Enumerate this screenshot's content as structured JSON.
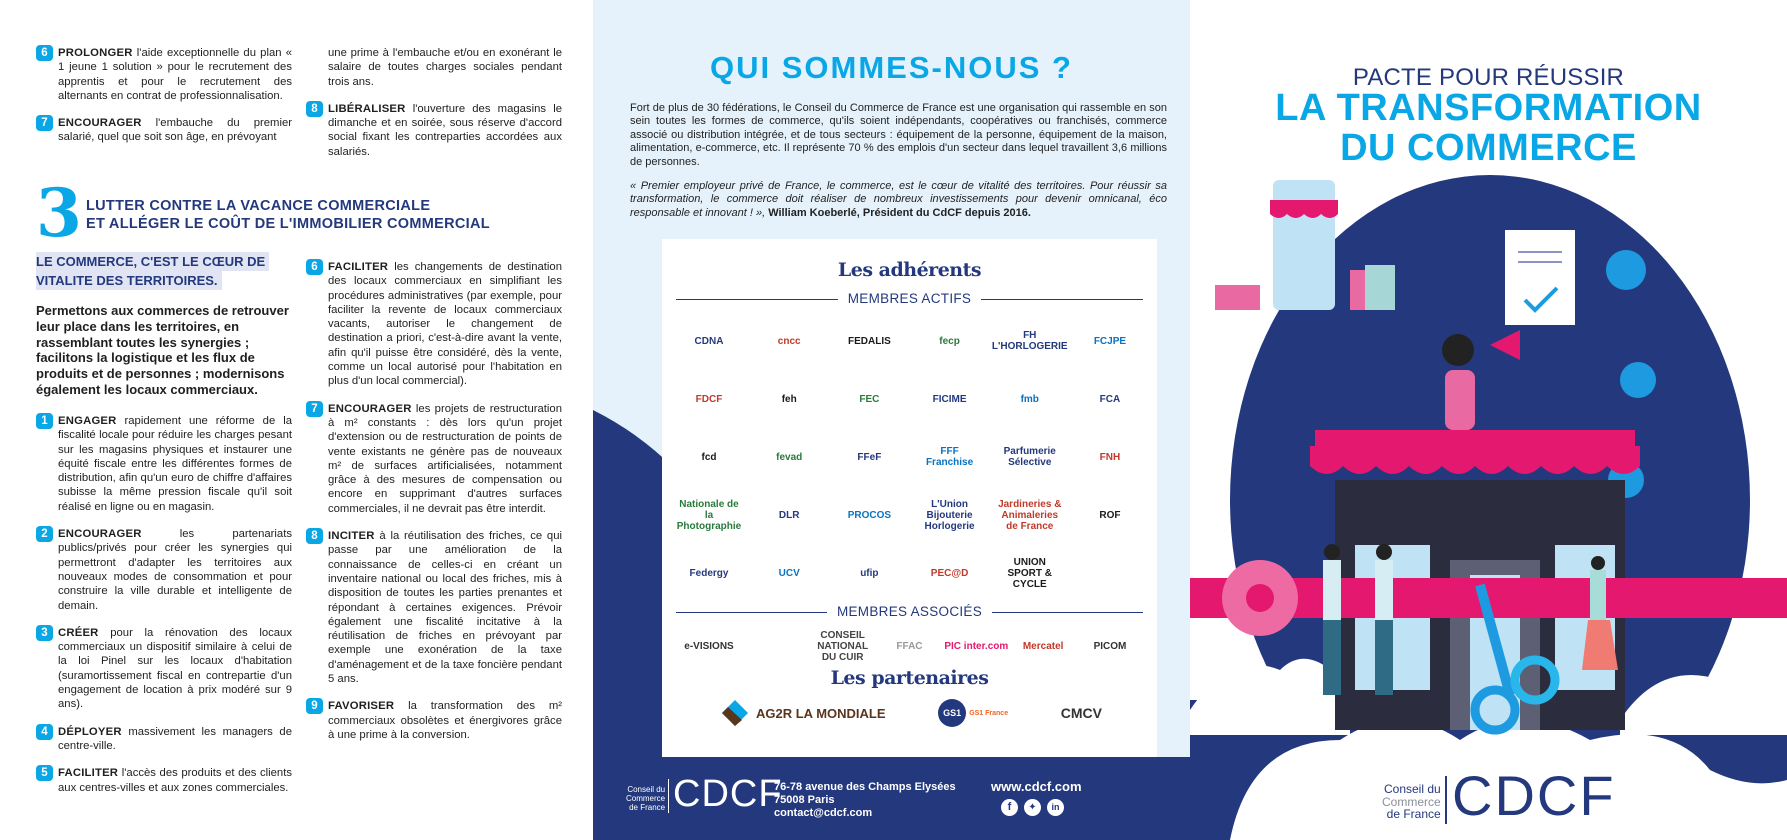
{
  "left": {
    "top_col1": [
      {
        "num": "6",
        "keyword": "PROLONGER",
        "text": " l'aide exceptionnelle du plan « 1 jeune 1 solution » pour le recrutement des apprentis et pour le recrutement des alternants en contrat de professionnalisation."
      },
      {
        "num": "7",
        "keyword": "ENCOURAGER",
        "text": " l'embauche du premier salarié, quel que soit son âge, en prévoyant"
      }
    ],
    "top_col2_continuation": "une prime à l'embauche et/ou en exonérant le salaire de toutes charges sociales pendant trois ans.",
    "top_col2": [
      {
        "num": "8",
        "keyword": "LIBÉRALISER",
        "text": " l'ouverture des magasins le dimanche et en soirée, sous réserve d'accord social fixant les contreparties accordées aux salariés."
      }
    ],
    "section3": {
      "number": "3",
      "title_line1": "LUTTER CONTRE LA VACANCE COMMERCIALE",
      "title_line2": "ET ALLÉGER LE COÛT DE L'IMMOBILIER COMMERCIAL",
      "highlight_line1": "LE COMMERCE, C'EST LE CŒUR DE",
      "highlight_line2": "VITALITE DES TERRITOIRES.",
      "lead": "Permettons aux commerces de retrouver leur place dans les territoires, en rassemblant toutes les synergies ; facilitons la logistique et les flux de produits et de personnes ; modernisons également les locaux commerciaux.",
      "col1": [
        {
          "num": "1",
          "keyword": "ENGAGER",
          "text": " rapidement une réforme de la fiscalité locale pour réduire les charges pesant sur les magasins physiques et instaurer une équité fiscale entre les différentes formes de distribution, afin qu'un euro de chiffre d'affaires subisse la même pression fiscale qu'il soit réalisé en ligne ou en magasin."
        },
        {
          "num": "2",
          "keyword": "ENCOURAGER",
          "text": " les partenariats publics/privés pour créer les synergies qui permettront d'adapter les territoires aux nouveaux modes de consommation et pour construire la ville durable et intelligente de demain."
        },
        {
          "num": "3",
          "keyword": "CRÉER",
          "text": " pour la rénovation des locaux commerciaux un dispositif similaire à celui de la loi Pinel sur les locaux d'habitation (suramortissement fiscal en contrepartie d'un engagement de location à prix modéré sur 9 ans)."
        },
        {
          "num": "4",
          "keyword": "DÉPLOYER",
          "text": " massivement les managers de centre-ville."
        },
        {
          "num": "5",
          "keyword": "FACILITER",
          "text": " l'accès des produits et des clients aux centres-villes et aux zones commerciales."
        }
      ],
      "col2": [
        {
          "num": "6",
          "keyword": "FACILITER",
          "text": " les changements de destination des locaux commerciaux en simplifiant les procédures administratives (par exemple, pour faciliter la revente de locaux commerciaux vacants, autoriser le changement de destination a priori, c'est-à-dire avant la vente, afin qu'il puisse être considéré, dès la vente, comme un local autorisé pour l'habitation en plus d'un local commercial)."
        },
        {
          "num": "7",
          "keyword": "ENCOURAGER",
          "text": " les projets de restructuration à m² constants : dès lors qu'un projet d'extension ou de restructuration de points de vente existants ne génère pas de nouveaux m² de surfaces artificialisées, notamment grâce à des mesures de compensation ou encore en supprimant d'autres surfaces commerciales, il ne devrait pas être interdit."
        },
        {
          "num": "8",
          "keyword": "INCITER",
          "text": " à la réutilisation des friches, ce qui passe par une amélioration de la connaissance de celles-ci en créant un inventaire national ou local des friches, mis à disposition de toutes les parties prenantes et répondant à certaines exigences. Prévoir également une fiscalité incitative à la réutilisation de friches en prévoyant par exemple une exonération de la taxe d'aménagement et de la taxe foncière pendant 5 ans."
        },
        {
          "num": "9",
          "keyword": "FAVORISER",
          "text": " la transformation des m² commerciaux obsolètes et énergivores grâce à une prime à la conversion."
        }
      ]
    }
  },
  "middle": {
    "title": "QUI SOMMES-NOUS ?",
    "intro": "Fort de plus de 30 fédérations, le Conseil du Commerce de France est une organisation qui rassemble en son sein toutes les formes de commerce, qu'ils soient indépendants, coopératives ou franchisés, commerce associé ou distribution intégrée, et de tous secteurs : équipement de la personne, équipement de la maison, alimentation, e-commerce, etc. Il représente 70 % des emplois d'un secteur dans lequel travaillent 3,6 millions de personnes.",
    "quote": "« Premier employeur privé de France, le commerce, est le cœur de vitalité des territoires. Pour réussir sa transformation, le commerce doit réaliser de nombreux investissements pour devenir omnicanal, éco responsable et innovant ! »,",
    "quote_author": " William Koeberlé, Président du CdCF depuis 2016.",
    "adherents_title": "Les adhérents",
    "membres_actifs_label": "MEMBRES ACTIFS",
    "membres_actifs_rows": [
      [
        "CDNA",
        "cncc",
        "FEDALIS",
        "fecp",
        "FH L'HORLOGERIE",
        "FCJPE"
      ],
      [
        "FDCF",
        "feh",
        "FEC",
        "FICIME",
        "fmb",
        "FCA"
      ],
      [
        "fcd",
        "fevad",
        "FFeF",
        "FFF Franchise",
        "Parfumerie Sélective",
        "FNH"
      ],
      [
        "Nationale de la Photographie",
        "DLR",
        "PROCOS",
        "L'Union Bijouterie Horlogerie",
        "Jardineries & Animaleries de France",
        "ROF"
      ],
      [
        "Federgy",
        "UCV",
        "ufip",
        "PEC@D",
        "UNION SPORT & CYCLE"
      ]
    ],
    "membres_associes_label": "MEMBRES ASSOCIÉS",
    "membres_associes": [
      "e-VISIONS",
      "",
      "CONSEIL NATIONAL DU CUIR",
      "FFAC",
      "PIC inter.com",
      "Mercatel",
      "PICOM"
    ],
    "partenaires_title": "Les partenaires",
    "partenaires": [
      "AG2R LA MONDIALE",
      "GS1 France",
      "CMCV"
    ],
    "footer": {
      "org_line1": "Conseil du",
      "org_line2": "Commerce",
      "org_line3": "de France",
      "logo": "CDCF",
      "address1": "76-78 avenue des Champs Elysées",
      "address2": "75008 Paris",
      "email": "contact@cdcf.com",
      "website": "www.cdcf.com",
      "social_icons": [
        "facebook-icon",
        "twitter-icon",
        "linkedin-icon"
      ]
    }
  },
  "right": {
    "title_line1": "PACTE POUR RÉUSSIR",
    "title_line2": "LA TRANSFORMATION",
    "title_line3": "DU COMMERCE",
    "org_line1": "Conseil du",
    "org_line2": "Commerce",
    "org_line3": "de France",
    "logo": "CDCF"
  },
  "colors": {
    "navy": "#24397d",
    "cyan": "#0aa7e6",
    "pink": "#e5186f",
    "light_blue": "#e5f2fb"
  }
}
